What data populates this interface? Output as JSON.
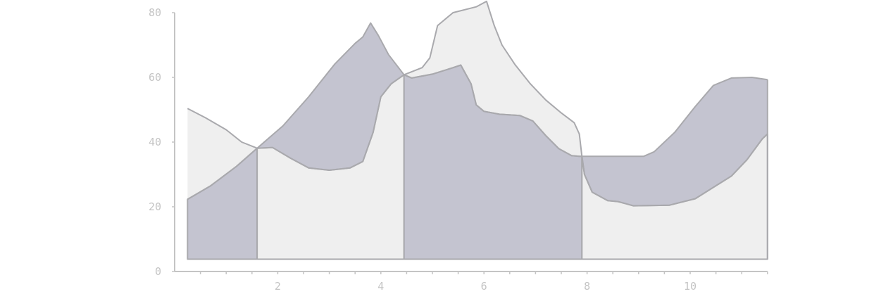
{
  "chart_data": {
    "type": "area",
    "title": "",
    "xlabel": "",
    "ylabel": "",
    "xlim": [
      0,
      11.5
    ],
    "ylim": [
      0,
      80
    ],
    "x_ticks": [
      2,
      4,
      6,
      8,
      10
    ],
    "x_tick_labels": [
      "2",
      "4",
      "6",
      "8",
      "10"
    ],
    "y_ticks": [
      0,
      20,
      40,
      60,
      80
    ],
    "y_tick_labels": [
      "0",
      "20",
      "40",
      "60",
      "80"
    ],
    "baseline": 3.8,
    "grid": false,
    "legend": "none",
    "colors": {
      "light": "#efefef",
      "dark": "#c4c4d0",
      "stroke": "#a9a9ad",
      "axis": "#c4c4c4"
    },
    "series": [
      {
        "points": [
          [
            0.25,
            22.3
          ],
          [
            0.7,
            26.5
          ],
          [
            1.2,
            32.5
          ],
          [
            1.6,
            38.1
          ],
          [
            2.1,
            45
          ],
          [
            2.6,
            54
          ],
          [
            3.1,
            64
          ],
          [
            3.5,
            70.5
          ],
          [
            3.65,
            72.5
          ],
          [
            3.8,
            76.8
          ],
          [
            3.95,
            73
          ],
          [
            4.15,
            67
          ],
          [
            4.45,
            60.8
          ],
          [
            4.6,
            59.8
          ],
          [
            5.0,
            61
          ],
          [
            5.4,
            63
          ],
          [
            5.55,
            63.8
          ],
          [
            5.75,
            58
          ],
          [
            5.85,
            51.5
          ],
          [
            6.0,
            49.5
          ],
          [
            6.3,
            48.6
          ],
          [
            6.7,
            48.2
          ],
          [
            6.95,
            46.5
          ],
          [
            7.2,
            42
          ],
          [
            7.45,
            38
          ],
          [
            7.7,
            35.8
          ],
          [
            7.85,
            35.6
          ],
          [
            9.1,
            35.6
          ],
          [
            9.3,
            37
          ],
          [
            9.7,
            43
          ],
          [
            10.1,
            51
          ],
          [
            10.45,
            57.5
          ],
          [
            10.8,
            59.8
          ],
          [
            11.2,
            60
          ],
          [
            11.5,
            59.3
          ]
        ]
      },
      {
        "points": [
          [
            0.25,
            50.4
          ],
          [
            0.6,
            47.5
          ],
          [
            1.0,
            43.8
          ],
          [
            1.3,
            40
          ],
          [
            1.6,
            38.1
          ],
          [
            1.9,
            38.3
          ],
          [
            2.25,
            35
          ],
          [
            2.6,
            32
          ],
          [
            3.0,
            31.3
          ],
          [
            3.4,
            32
          ],
          [
            3.65,
            34
          ],
          [
            3.85,
            43
          ],
          [
            4.0,
            54
          ],
          [
            4.2,
            58
          ],
          [
            4.45,
            60.8
          ],
          [
            4.8,
            63
          ],
          [
            4.95,
            66
          ],
          [
            5.1,
            76
          ],
          [
            5.4,
            80
          ],
          [
            5.85,
            81.8
          ],
          [
            6.05,
            83.5
          ],
          [
            6.2,
            76
          ],
          [
            6.35,
            70
          ],
          [
            6.6,
            64
          ],
          [
            6.9,
            58
          ],
          [
            7.2,
            53
          ],
          [
            7.5,
            49
          ],
          [
            7.75,
            46
          ],
          [
            7.85,
            42.5
          ],
          [
            7.9,
            35.6
          ],
          [
            7.95,
            30
          ],
          [
            8.1,
            24.5
          ],
          [
            8.4,
            21.9
          ],
          [
            8.6,
            21.6
          ],
          [
            8.9,
            20.3
          ],
          [
            9.6,
            20.5
          ],
          [
            10.1,
            22.5
          ],
          [
            10.6,
            27.5
          ],
          [
            10.8,
            29.5
          ],
          [
            11.1,
            34.5
          ],
          [
            11.4,
            41
          ],
          [
            11.5,
            42.5
          ]
        ]
      }
    ]
  }
}
